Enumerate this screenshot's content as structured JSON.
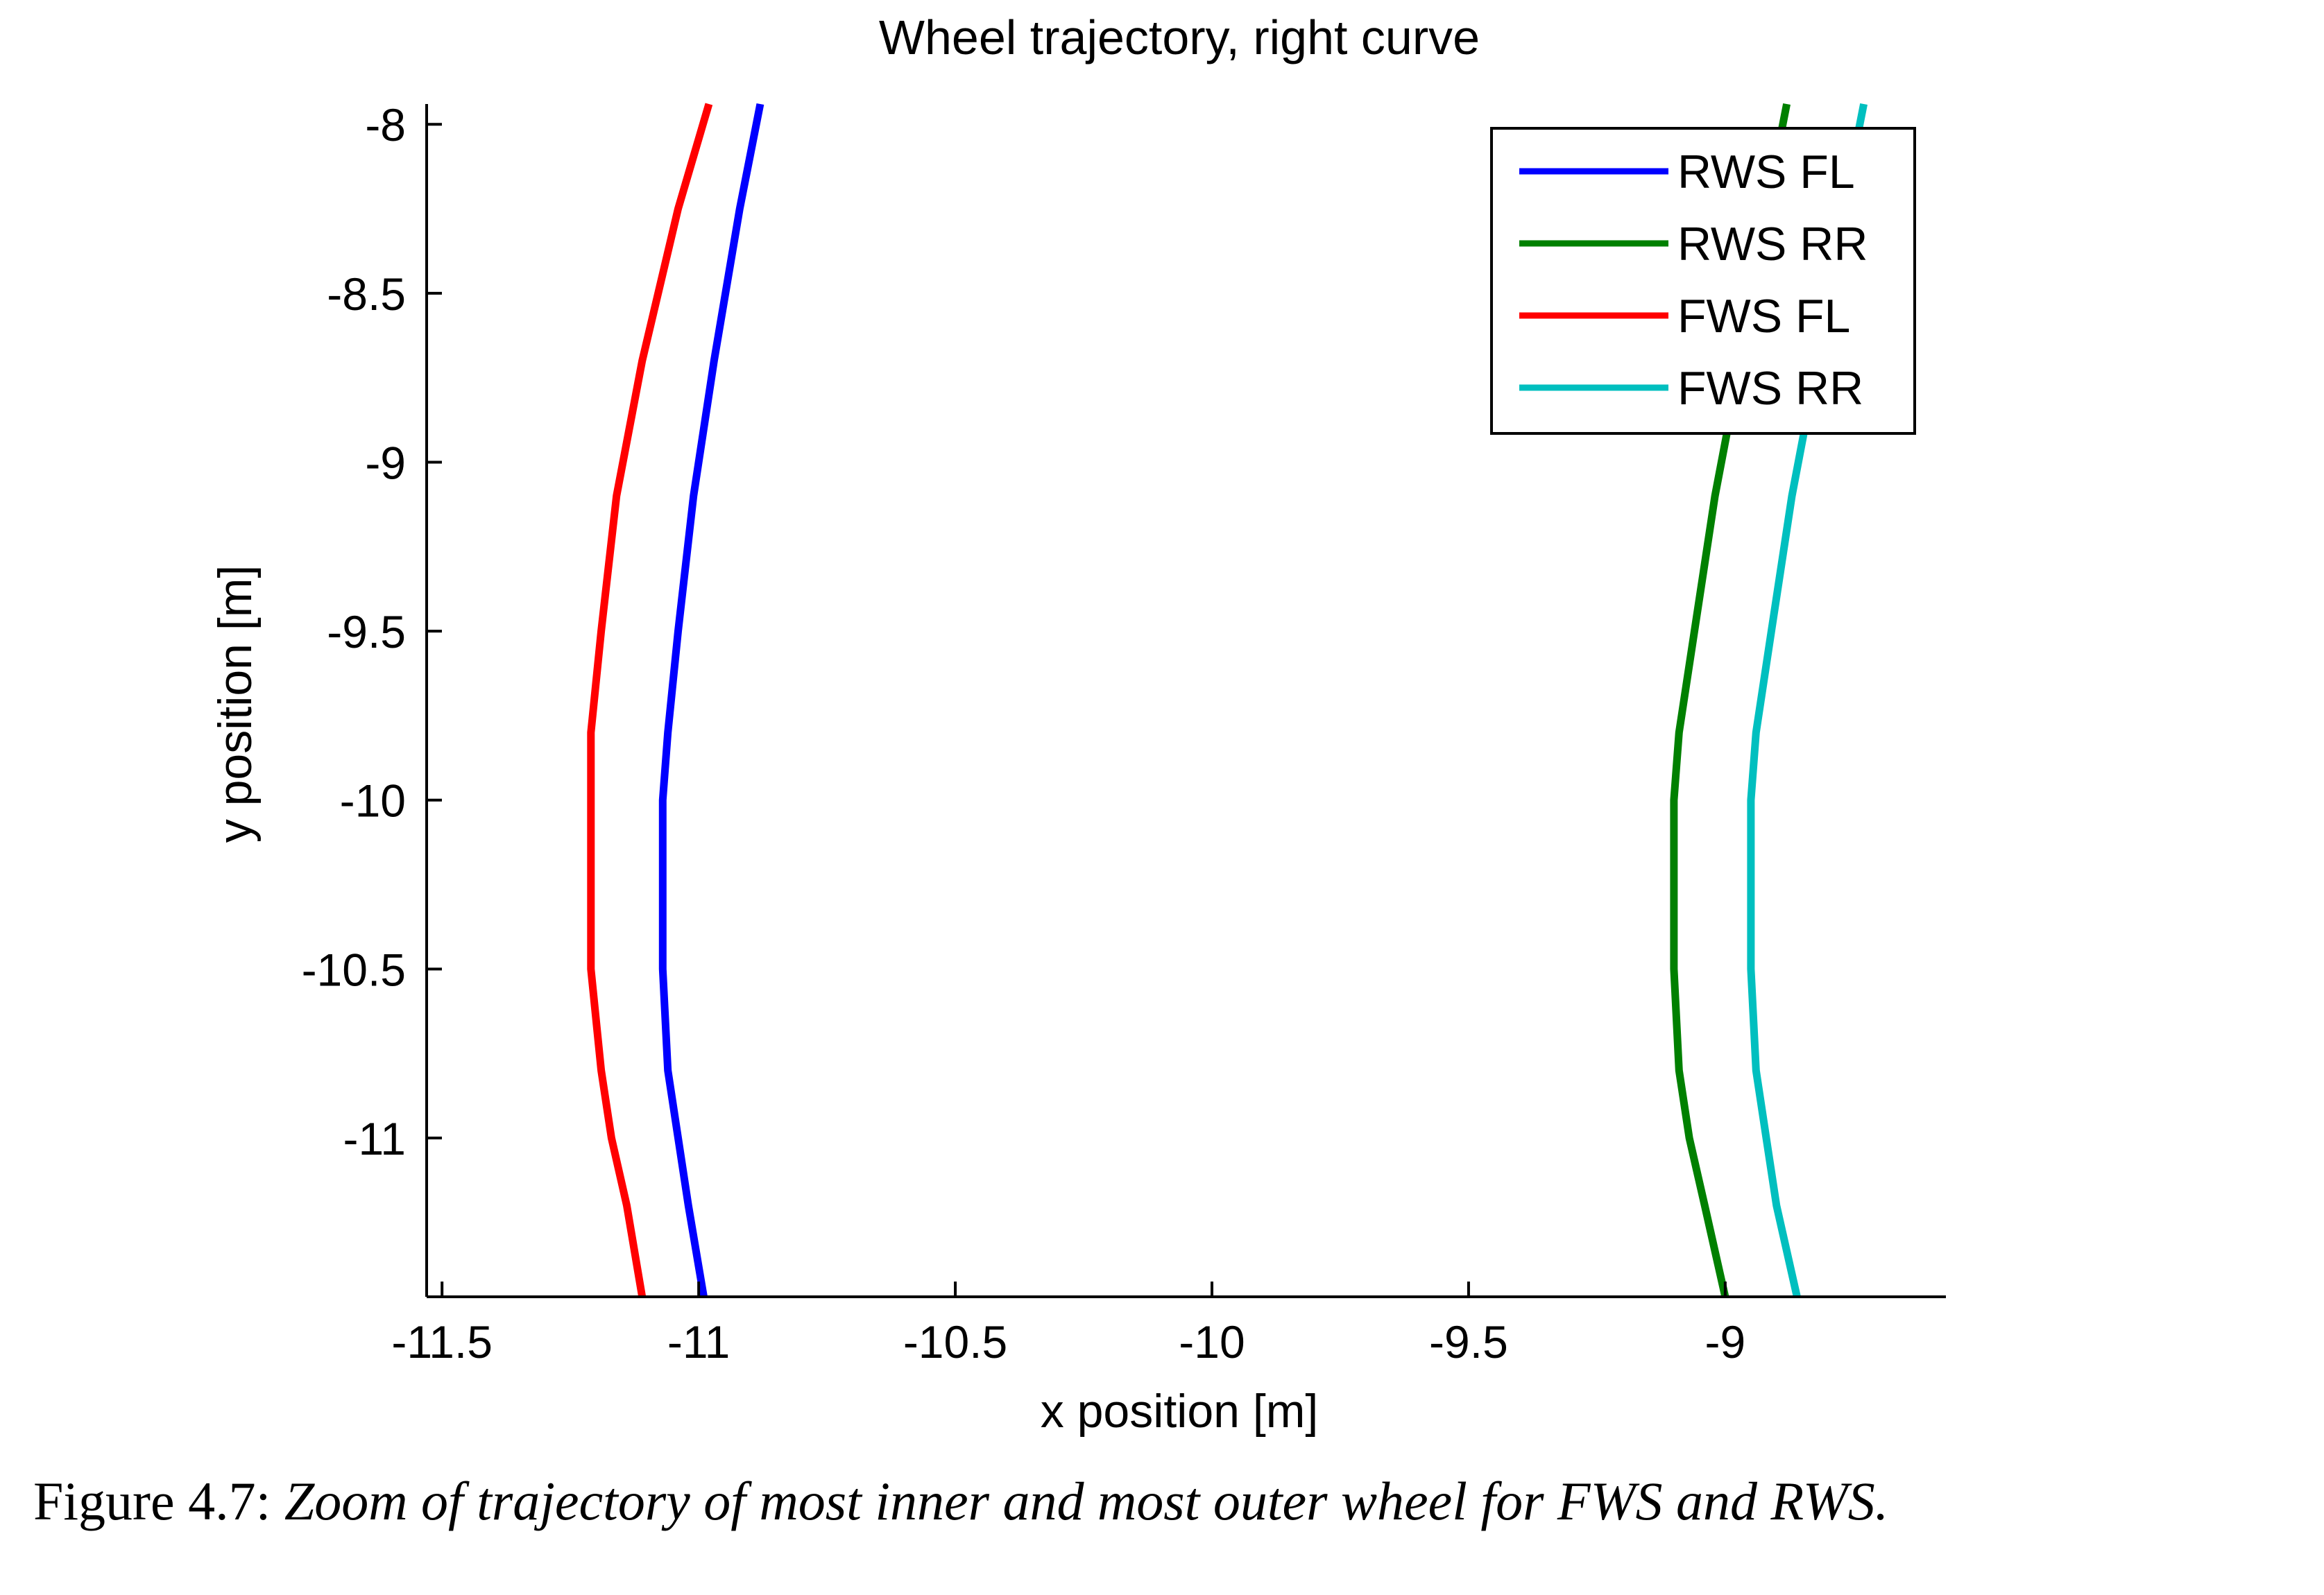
{
  "chart_data": {
    "type": "line",
    "title": "Wheel trajectory, right curve",
    "xlabel": "x position [m]",
    "ylabel": "y position [m]",
    "xlim": [
      -11.53,
      -8.57
    ],
    "ylim": [
      -11.47,
      -7.94
    ],
    "xticks": [
      -11.5,
      -11,
      -10.5,
      -10,
      -9.5,
      -9
    ],
    "xtick_labels": [
      "-11.5",
      "-11",
      "-10.5",
      "-10",
      "-9.5",
      "-9"
    ],
    "yticks": [
      -8,
      -8.5,
      -9,
      -9.5,
      -10,
      -10.5,
      -11
    ],
    "ytick_labels": [
      "-8",
      "-8.5",
      "-9",
      "-9.5",
      "-10",
      "-10.5",
      "-11"
    ],
    "grid": false,
    "legend_position": "top-right",
    "series": [
      {
        "name": "RWS FL",
        "color": "#0000ff",
        "x": [
          -10.88,
          -10.92,
          -10.97,
          -11.01,
          -11.04,
          -11.06,
          -11.07,
          -11.07,
          -11.07,
          -11.06,
          -11.04,
          -11.02,
          -10.99
        ],
        "y": [
          -7.94,
          -8.25,
          -8.7,
          -9.1,
          -9.5,
          -9.8,
          -10.0,
          -10.2,
          -10.5,
          -10.8,
          -11.0,
          -11.2,
          -11.47
        ]
      },
      {
        "name": "RWS RR",
        "color": "#008000",
        "x": [
          -8.88,
          -8.92,
          -8.97,
          -9.02,
          -9.06,
          -9.09,
          -9.1,
          -9.1,
          -9.1,
          -9.09,
          -9.07,
          -9.04,
          -9.0
        ],
        "y": [
          -7.94,
          -8.25,
          -8.7,
          -9.1,
          -9.5,
          -9.8,
          -10.0,
          -10.2,
          -10.5,
          -10.8,
          -11.0,
          -11.2,
          -11.47
        ]
      },
      {
        "name": "FWS FL",
        "color": "#ff0000",
        "x": [
          -10.98,
          -11.04,
          -11.11,
          -11.16,
          -11.19,
          -11.21,
          -11.21,
          -11.21,
          -11.21,
          -11.19,
          -11.17,
          -11.14,
          -11.11
        ],
        "y": [
          -7.94,
          -8.25,
          -8.7,
          -9.1,
          -9.5,
          -9.8,
          -10.0,
          -10.2,
          -10.5,
          -10.8,
          -11.0,
          -11.2,
          -11.47
        ]
      },
      {
        "name": "FWS RR",
        "color": "#00bfbf",
        "x": [
          -8.73,
          -8.77,
          -8.82,
          -8.87,
          -8.91,
          -8.94,
          -8.95,
          -8.95,
          -8.95,
          -8.94,
          -8.92,
          -8.9,
          -8.86
        ],
        "y": [
          -7.94,
          -8.25,
          -8.7,
          -9.1,
          -9.5,
          -9.8,
          -10.0,
          -10.2,
          -10.5,
          -10.8,
          -11.0,
          -11.2,
          -11.47
        ]
      }
    ]
  },
  "caption": {
    "label": "Figure 4.7:",
    "text": "Zoom of trajectory of most inner and most outer wheel for FWS and RWS."
  }
}
